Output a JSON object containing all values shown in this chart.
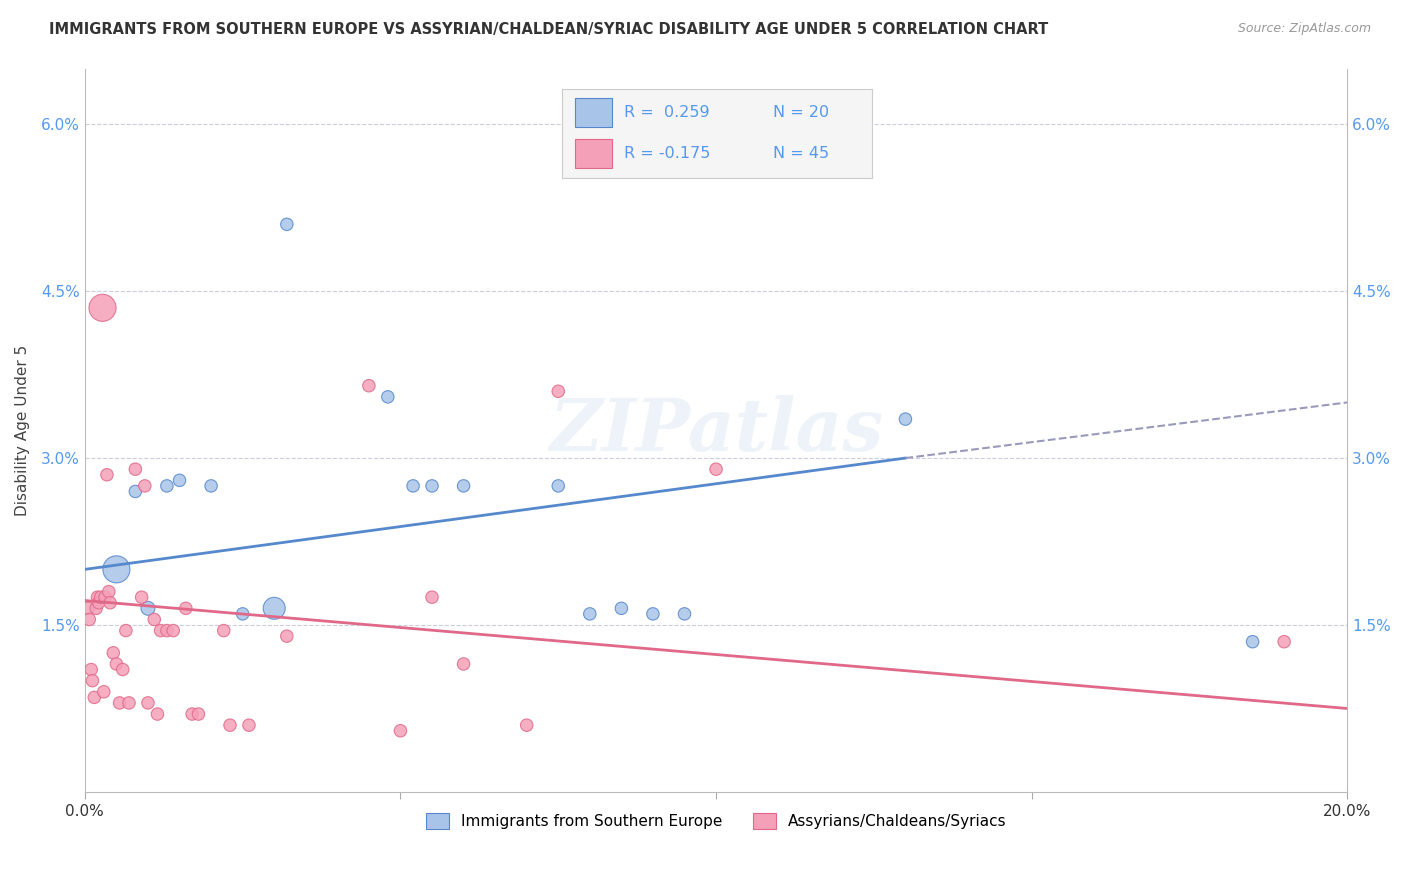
{
  "title": "IMMIGRANTS FROM SOUTHERN EUROPE VS ASSYRIAN/CHALDEAN/SYRIAC DISABILITY AGE UNDER 5 CORRELATION CHART",
  "source": "Source: ZipAtlas.com",
  "ylabel": "Disability Age Under 5",
  "legend_label1": "Immigrants from Southern Europe",
  "legend_label2": "Assyrians/Chaldeans/Syriacs",
  "color_blue": "#a8c4e8",
  "color_pink": "#f4a0b8",
  "line_blue": "#5588cc",
  "line_pink": "#e06888",
  "line_dashed_color": "#9999bb",
  "ytick_color": "#5599ee",
  "background": "#ffffff",
  "grid_color": "#ccccdd",
  "blue_points": [
    [
      0.5,
      2.0
    ],
    [
      0.8,
      2.7
    ],
    [
      1.0,
      1.65
    ],
    [
      1.3,
      2.75
    ],
    [
      1.5,
      2.8
    ],
    [
      2.0,
      2.75
    ],
    [
      2.5,
      1.6
    ],
    [
      3.0,
      1.65
    ],
    [
      4.8,
      3.55
    ],
    [
      5.2,
      2.75
    ],
    [
      5.5,
      2.75
    ],
    [
      6.0,
      2.75
    ],
    [
      7.5,
      2.75
    ],
    [
      8.0,
      1.6
    ],
    [
      8.5,
      1.65
    ],
    [
      9.0,
      1.6
    ],
    [
      9.5,
      1.6
    ],
    [
      13.0,
      3.35
    ],
    [
      18.5,
      1.35
    ],
    [
      3.2,
      5.1
    ]
  ],
  "blue_sizes": [
    350,
    80,
    100,
    80,
    80,
    80,
    80,
    250,
    80,
    80,
    80,
    80,
    80,
    80,
    80,
    80,
    80,
    80,
    80,
    80
  ],
  "pink_points": [
    [
      0.05,
      1.65
    ],
    [
      0.07,
      1.55
    ],
    [
      0.1,
      1.1
    ],
    [
      0.12,
      1.0
    ],
    [
      0.15,
      0.85
    ],
    [
      0.18,
      1.65
    ],
    [
      0.2,
      1.75
    ],
    [
      0.22,
      1.7
    ],
    [
      0.25,
      1.75
    ],
    [
      0.28,
      4.35
    ],
    [
      0.3,
      0.9
    ],
    [
      0.32,
      1.75
    ],
    [
      0.35,
      2.85
    ],
    [
      0.38,
      1.8
    ],
    [
      0.4,
      1.7
    ],
    [
      0.45,
      1.25
    ],
    [
      0.5,
      1.15
    ],
    [
      0.55,
      0.8
    ],
    [
      0.6,
      1.1
    ],
    [
      0.65,
      1.45
    ],
    [
      0.7,
      0.8
    ],
    [
      0.8,
      2.9
    ],
    [
      0.9,
      1.75
    ],
    [
      0.95,
      2.75
    ],
    [
      1.0,
      0.8
    ],
    [
      1.1,
      1.55
    ],
    [
      1.15,
      0.7
    ],
    [
      1.2,
      1.45
    ],
    [
      1.3,
      1.45
    ],
    [
      1.4,
      1.45
    ],
    [
      1.6,
      1.65
    ],
    [
      1.7,
      0.7
    ],
    [
      1.8,
      0.7
    ],
    [
      2.2,
      1.45
    ],
    [
      2.3,
      0.6
    ],
    [
      2.6,
      0.6
    ],
    [
      3.2,
      1.4
    ],
    [
      4.5,
      3.65
    ],
    [
      5.0,
      0.55
    ],
    [
      5.5,
      1.75
    ],
    [
      6.0,
      1.15
    ],
    [
      7.0,
      0.6
    ],
    [
      7.5,
      3.6
    ],
    [
      10.0,
      2.9
    ],
    [
      19.0,
      1.35
    ]
  ],
  "pink_sizes": [
    80,
    80,
    80,
    80,
    80,
    80,
    80,
    80,
    80,
    80,
    80,
    80,
    80,
    80,
    80,
    80,
    80,
    80,
    80,
    80,
    80,
    80,
    80,
    80,
    80,
    80,
    80,
    80,
    80,
    80,
    80,
    80,
    80,
    80,
    80,
    80,
    80,
    80,
    80,
    80,
    80,
    80,
    80,
    80,
    80
  ],
  "pink_large_idx": 9,
  "pink_large_size": 380,
  "blue_large_idx": 0,
  "blue_large_size": 380,
  "xlim": [
    0,
    20
  ],
  "ylim": [
    0,
    6.5
  ],
  "yticks": [
    0,
    1.5,
    3.0,
    4.5,
    6.0
  ],
  "ytick_labels": [
    "",
    "1.5%",
    "3.0%",
    "4.5%",
    "6.0%"
  ],
  "blue_trendline_solid": [
    0,
    2.0,
    13.0,
    3.0
  ],
  "blue_trendline_dashed": [
    13.0,
    3.0,
    20.0,
    3.5
  ],
  "pink_trendline": [
    0,
    1.72,
    20,
    0.75
  ]
}
